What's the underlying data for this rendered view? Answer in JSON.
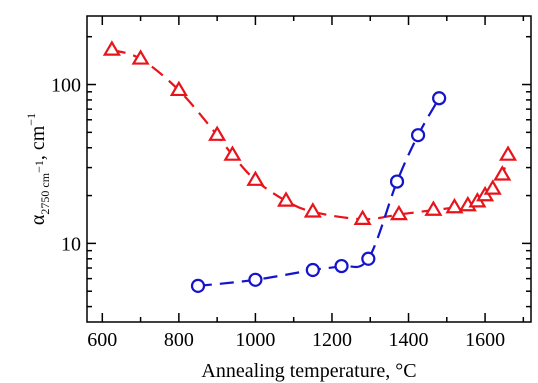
{
  "chart_data": {
    "type": "scatter",
    "title": "",
    "xlabel": "Annealing temperature, °C",
    "ylabel": {
      "symbol": "α",
      "subscript": "2750 cm",
      "subscript_sup": "−1",
      "separator": ", ",
      "unit": "cm",
      "unit_sup": "−1"
    },
    "xlim": [
      560,
      1720
    ],
    "ylim": [
      3.2,
      270
    ],
    "yscale": "log",
    "grid": false,
    "legend": "none",
    "x_ticks": [
      600,
      800,
      1000,
      1200,
      1400,
      1600
    ],
    "x_tick_labels": [
      "600",
      "800",
      "1000",
      "1200",
      "1400",
      "1600"
    ],
    "y_ticks": [
      10,
      100
    ],
    "y_tick_labels": [
      "10",
      "100"
    ],
    "series": [
      {
        "marker": "triangle",
        "color": "#e8141c",
        "line_style": "dashed",
        "points": [
          {
            "x": 625,
            "y": 165
          },
          {
            "x": 700,
            "y": 145
          },
          {
            "x": 800,
            "y": 92
          },
          {
            "x": 900,
            "y": 48
          },
          {
            "x": 940,
            "y": 36
          },
          {
            "x": 1000,
            "y": 25
          },
          {
            "x": 1080,
            "y": 18.5
          },
          {
            "x": 1150,
            "y": 15.8
          },
          {
            "x": 1280,
            "y": 14.2
          },
          {
            "x": 1375,
            "y": 15.2
          },
          {
            "x": 1465,
            "y": 16.2
          },
          {
            "x": 1520,
            "y": 16.8
          },
          {
            "x": 1555,
            "y": 17.3
          },
          {
            "x": 1580,
            "y": 18.3
          },
          {
            "x": 1600,
            "y": 20
          },
          {
            "x": 1620,
            "y": 22
          },
          {
            "x": 1645,
            "y": 27
          },
          {
            "x": 1660,
            "y": 36
          }
        ]
      },
      {
        "marker": "circle",
        "color": "#1414cc",
        "line_style": "dashed",
        "points": [
          {
            "x": 850,
            "y": 5.4
          },
          {
            "x": 1000,
            "y": 5.9
          },
          {
            "x": 1150,
            "y": 6.8
          },
          {
            "x": 1225,
            "y": 7.2
          },
          {
            "x": 1295,
            "y": 8.0
          },
          {
            "x": 1370,
            "y": 24.5
          },
          {
            "x": 1425,
            "y": 48
          },
          {
            "x": 1480,
            "y": 82
          }
        ]
      }
    ]
  }
}
